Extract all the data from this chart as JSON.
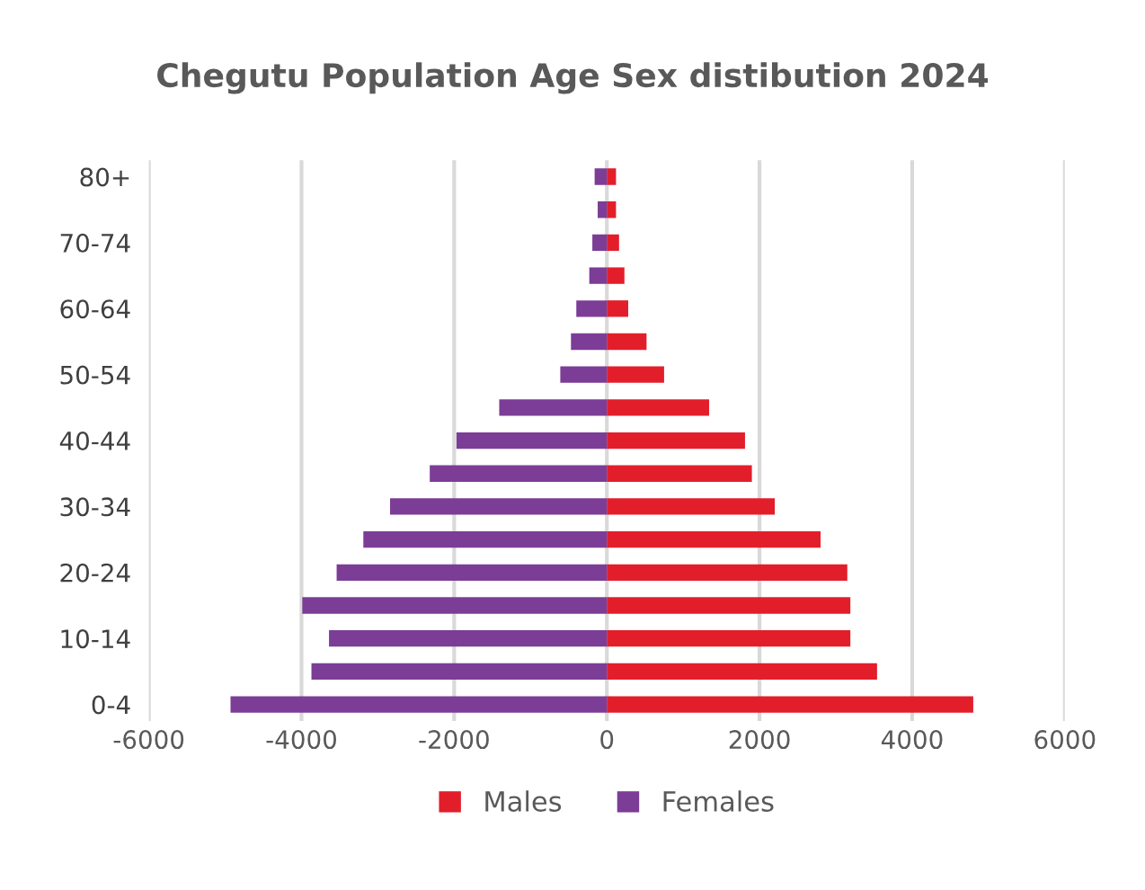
{
  "chart_data": {
    "type": "bar",
    "orientation": "horizontal",
    "title": "Chegutu Population Age Sex distibution 2024",
    "categories": [
      "80+",
      null,
      "70-74",
      null,
      "60-64",
      null,
      "50-54",
      null,
      "40-44",
      null,
      "30-34",
      null,
      "20-24",
      null,
      "10-14",
      null,
      "0-4"
    ],
    "series": [
      {
        "name": "Males",
        "color": "#e31e2b",
        "values": [
          120,
          120,
          160,
          230,
          280,
          520,
          750,
          1340,
          1810,
          1900,
          2200,
          2800,
          3150,
          3190,
          3190,
          3540,
          4800
        ]
      },
      {
        "name": "Females",
        "color": "#7b3d96",
        "values": [
          -160,
          -120,
          -190,
          -230,
          -400,
          -470,
          -610,
          -1410,
          -1970,
          -2320,
          -2840,
          -3190,
          -3540,
          -3990,
          -3640,
          -3870,
          -4930
        ]
      }
    ],
    "xlim": [
      -6000,
      6000
    ],
    "xticks": [
      -6000,
      -4000,
      -2000,
      0,
      2000,
      4000,
      6000
    ],
    "grid": "x",
    "legend": "bottom",
    "stacked": true
  }
}
